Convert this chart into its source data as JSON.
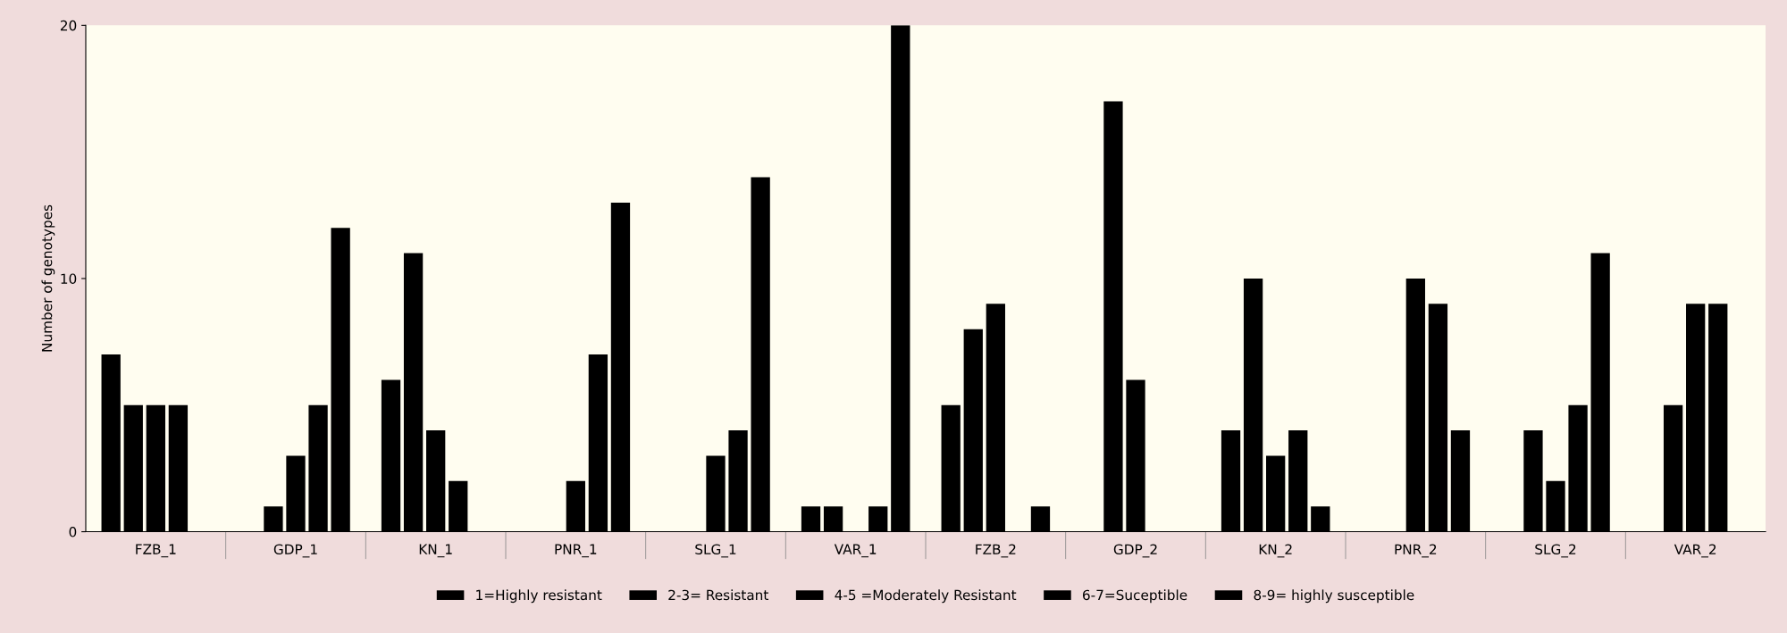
{
  "chart_data": {
    "type": "bar",
    "ylabel": "Number of genotypes",
    "categories": [
      "FZB_1",
      "GDP_1",
      "KN_1",
      "PNR_1",
      "SLG_1",
      "VAR_1",
      "FZB_2",
      "GDP_2",
      "KN_2",
      "PNR_2",
      "SLG_2",
      "VAR_2"
    ],
    "series": [
      {
        "name": "1=Highly resistant",
        "color": "#000000",
        "values": [
          7,
          0,
          6,
          0,
          0,
          1,
          5,
          0,
          4,
          0,
          0,
          0
        ]
      },
      {
        "name": "2-3= Resistant",
        "color": "#000000",
        "values": [
          5,
          1,
          11,
          0,
          0,
          1,
          8,
          17,
          10,
          0,
          4,
          5
        ]
      },
      {
        "name": "4-5 =Moderately Resistant",
        "color": "#000000",
        "values": [
          5,
          3,
          4,
          2,
          3,
          0,
          9,
          6,
          3,
          10,
          2,
          9
        ]
      },
      {
        "name": "6-7=Suceptible",
        "color": "#000000",
        "values": [
          5,
          5,
          2,
          7,
          4,
          1,
          0,
          0,
          4,
          9,
          5,
          9
        ]
      },
      {
        "name": "8-9= highly susceptible",
        "color": "#000000",
        "values": [
          0,
          12,
          0,
          13,
          14,
          20,
          1,
          0,
          1,
          4,
          11,
          0
        ]
      }
    ],
    "ylim": [
      0,
      20
    ],
    "yticks": [
      0,
      10,
      20
    ],
    "grid": false,
    "legend": "bottom"
  }
}
